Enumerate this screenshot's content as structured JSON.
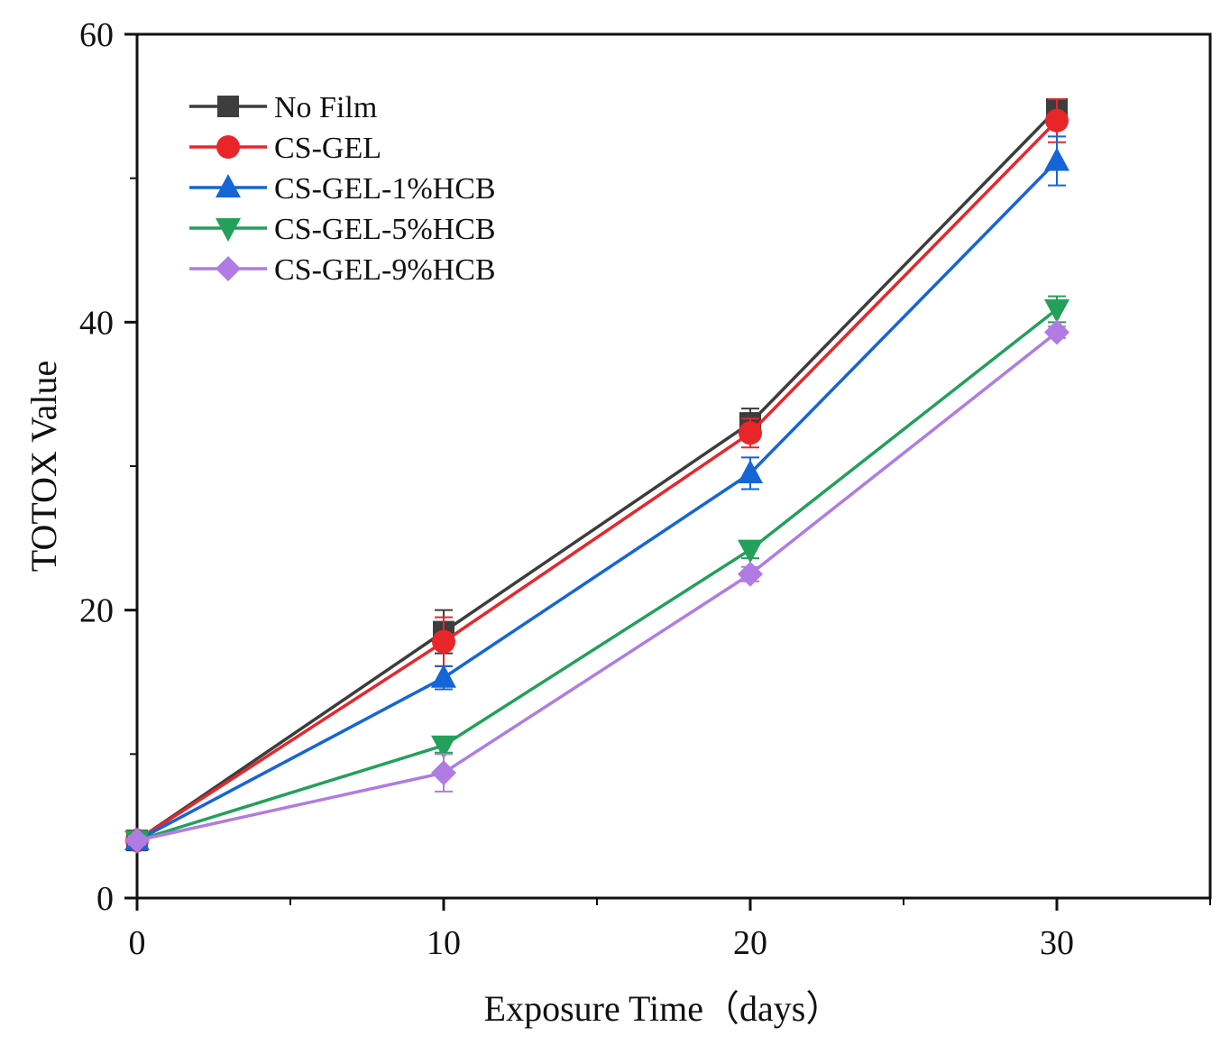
{
  "chart_data": {
    "type": "line",
    "title": "",
    "xlabel": "Exposure Time（days）",
    "ylabel": "TOTOX Value",
    "x": [
      0,
      10,
      20,
      30
    ],
    "xlim": [
      0,
      35
    ],
    "ylim": [
      0,
      60
    ],
    "xticks": [
      0,
      10,
      20,
      30
    ],
    "yticks": [
      0,
      20,
      40,
      60
    ],
    "x_tick_labels": [
      "0",
      "10",
      "20",
      "30"
    ],
    "y_tick_labels": [
      "0",
      "20",
      "40",
      "60"
    ],
    "grid": false,
    "legend_position": "top-left",
    "series": [
      {
        "name": "No Film",
        "marker": "square",
        "color": "#3d3d3d",
        "values": [
          4.0,
          18.5,
          33.0,
          54.8
        ],
        "errors": [
          0.3,
          1.5,
          1.0,
          0.6
        ]
      },
      {
        "name": "CS-GEL",
        "marker": "circle",
        "color": "#e8262a",
        "values": [
          4.0,
          17.8,
          32.3,
          54.0
        ],
        "errors": [
          0.3,
          1.7,
          1.0,
          1.5
        ]
      },
      {
        "name": "CS-GEL-1%HCB",
        "marker": "triangle-up",
        "color": "#1565d8",
        "values": [
          4.0,
          15.3,
          29.5,
          51.2
        ],
        "errors": [
          0.3,
          0.8,
          1.1,
          1.7
        ]
      },
      {
        "name": "CS-GEL-5%HCB",
        "marker": "triangle-down",
        "color": "#23a05a",
        "values": [
          4.0,
          10.6,
          24.2,
          40.9
        ],
        "errors": [
          0.3,
          0.5,
          0.6,
          0.9
        ]
      },
      {
        "name": "CS-GEL-9%HCB",
        "marker": "diamond",
        "color": "#b07ce3",
        "values": [
          4.0,
          8.7,
          22.5,
          39.3
        ],
        "errors": [
          0.3,
          1.3,
          0.5,
          0.4
        ]
      }
    ]
  }
}
